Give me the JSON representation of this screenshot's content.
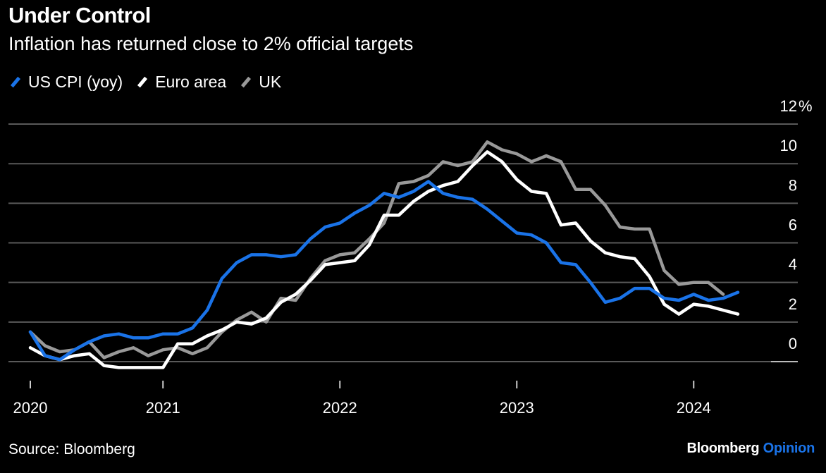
{
  "header": {
    "title": "Under Control",
    "subtitle": "Inflation has returned close to 2% official targets"
  },
  "footer": {
    "source": "Source: Bloomberg",
    "logo_brand": "Bloomberg",
    "logo_product": "Opinion"
  },
  "colors": {
    "background": "#000000",
    "grid": "#595959",
    "us": "#1a73e8",
    "euro": "#ffffff",
    "uk": "#999999",
    "logo_accent": "#1a73e8"
  },
  "chart_data": {
    "type": "line",
    "title": "Under Control",
    "subtitle": "Inflation has returned close to 2% official targets",
    "legend_position": "top-left",
    "grid": true,
    "x_start": "2020-03",
    "x_frequency": "monthly",
    "xlim": [
      "2020-03",
      "2024-03"
    ],
    "x_ticks": [
      {
        "label": "2020",
        "date": "2020-04-01"
      },
      {
        "label": "2021",
        "date": "2021-01-01"
      },
      {
        "label": "2022",
        "date": "2022-01-01"
      },
      {
        "label": "2023",
        "date": "2023-01-01"
      },
      {
        "label": "2024",
        "date": "2024-01-01"
      }
    ],
    "ylim": [
      0,
      12
    ],
    "y_axis_position": "right",
    "y_ticks": [
      0,
      2,
      4,
      6,
      8,
      10,
      12
    ],
    "y_tick_labels": [
      "0",
      "2",
      "4",
      "6",
      "8",
      "10",
      "12"
    ],
    "y_unit": "%",
    "series": [
      {
        "name": "US CPI (yoy)",
        "color": "#1a73e8",
        "values": [
          1.5,
          0.3,
          0.1,
          0.6,
          1.0,
          1.3,
          1.4,
          1.2,
          1.2,
          1.4,
          1.4,
          1.7,
          2.6,
          4.2,
          5.0,
          5.4,
          5.4,
          5.3,
          5.4,
          6.2,
          6.8,
          7.0,
          7.5,
          7.9,
          8.5,
          8.3,
          8.6,
          9.1,
          8.5,
          8.3,
          8.2,
          7.7,
          7.1,
          6.5,
          6.4,
          6.0,
          5.0,
          4.9,
          4.0,
          3.0,
          3.2,
          3.7,
          3.7,
          3.2,
          3.1,
          3.4,
          3.1,
          3.2,
          3.5
        ]
      },
      {
        "name": "Euro area",
        "color": "#ffffff",
        "values": [
          0.7,
          0.3,
          0.1,
          0.3,
          0.4,
          -0.2,
          -0.3,
          -0.3,
          -0.3,
          -0.3,
          0.9,
          0.9,
          1.3,
          1.6,
          2.0,
          1.9,
          2.2,
          3.0,
          3.4,
          4.1,
          4.9,
          5.0,
          5.1,
          5.9,
          7.4,
          7.4,
          8.1,
          8.6,
          8.9,
          9.1,
          9.9,
          10.6,
          10.1,
          9.2,
          8.6,
          8.5,
          6.9,
          7.0,
          6.1,
          5.5,
          5.3,
          5.2,
          4.3,
          2.9,
          2.4,
          2.9,
          2.8,
          2.6,
          2.4
        ]
      },
      {
        "name": "UK",
        "color": "#999999",
        "values": [
          1.5,
          0.8,
          0.5,
          0.6,
          1.0,
          0.2,
          0.5,
          0.7,
          0.3,
          0.6,
          0.7,
          0.4,
          0.7,
          1.5,
          2.1,
          2.5,
          2.0,
          3.2,
          3.1,
          4.2,
          5.1,
          5.4,
          5.5,
          6.2,
          7.0,
          9.0,
          9.1,
          9.4,
          10.1,
          9.9,
          10.1,
          11.1,
          10.7,
          10.5,
          10.1,
          10.4,
          10.1,
          8.7,
          8.7,
          7.9,
          6.8,
          6.7,
          6.7,
          4.6,
          3.9,
          4.0,
          4.0,
          3.4
        ]
      }
    ]
  }
}
